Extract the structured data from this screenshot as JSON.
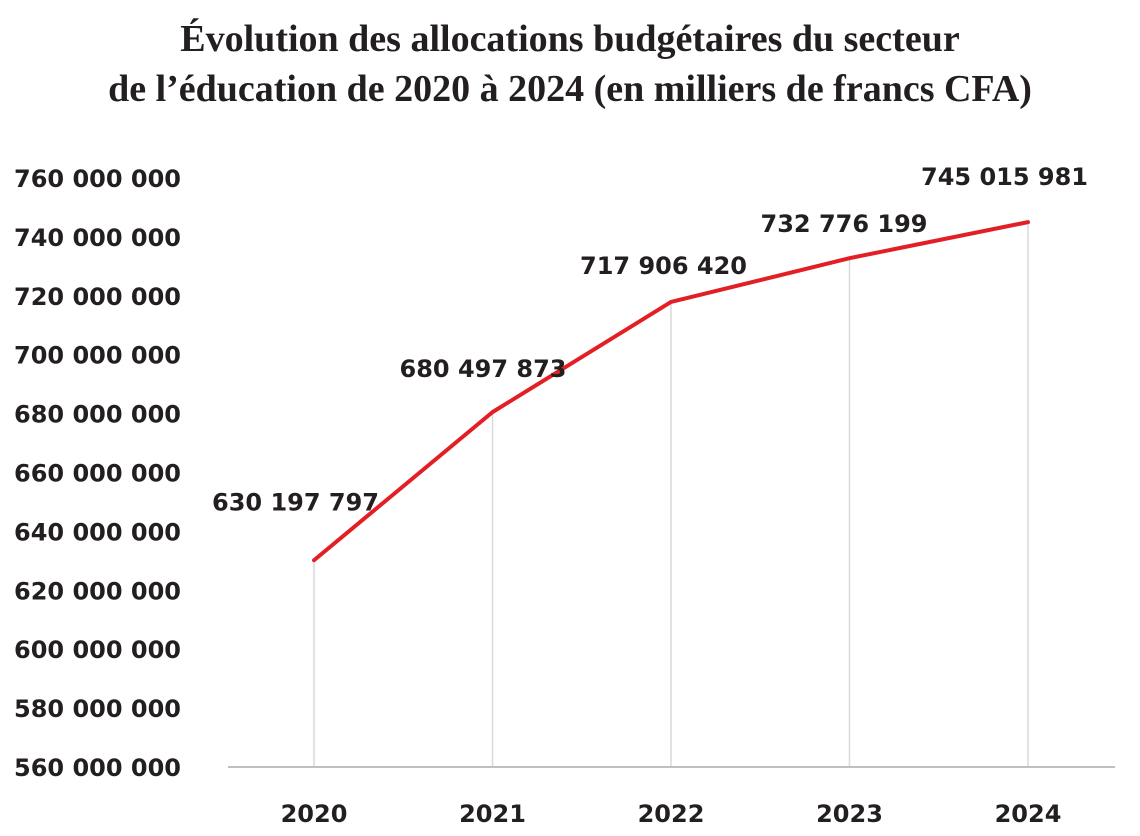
{
  "title": {
    "line1": "Évolution des allocations budgétaires du secteur",
    "line2": "de l’éducation de 2020 à 2024 (en milliers de francs CFA)"
  },
  "colors": {
    "series_line": "#e31e25",
    "grid_line": "#d9d9d9",
    "axis_line": "#bfbfbf",
    "text": "#231f20"
  },
  "chart_data": {
    "type": "line",
    "title": "Évolution des allocations budgétaires du secteur de l’éducation de 2020 à 2024 (en milliers de francs CFA)",
    "xlabel": "",
    "ylabel": "",
    "categories": [
      "2020",
      "2021",
      "2022",
      "2023",
      "2024"
    ],
    "series": [
      {
        "values": [
          630197797,
          680497873,
          717906420,
          732776199,
          745015981
        ],
        "labels": [
          "630 197 797",
          "680 497 873",
          "717 906 420",
          "732 776 199",
          "745 015 981"
        ]
      }
    ],
    "ylim": [
      560000000,
      760000000
    ],
    "y_ticks": [
      760000000,
      740000000,
      720000000,
      700000000,
      680000000,
      660000000,
      640000000,
      620000000,
      600000000,
      580000000,
      560000000
    ],
    "y_tick_labels": [
      "760 000 000",
      "740 000 000",
      "720 000 000",
      "700 000 000",
      "680 000 000",
      "660 000 000",
      "640 000 000",
      "620 000 000",
      "600 000 000",
      "580 000 000",
      "560 000 000"
    ],
    "grid": "vertical drop lines at each category",
    "legend": "none"
  }
}
